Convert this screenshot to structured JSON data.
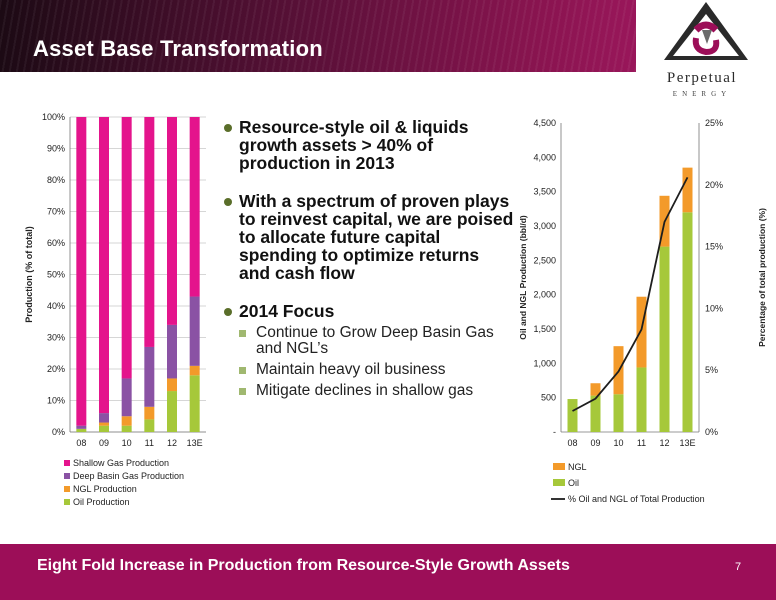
{
  "slide": {
    "title": "Asset Base Transformation",
    "logo": {
      "name": "Perpetual",
      "sub": "ENERGY"
    },
    "footer": "Eight Fold Increase in Production from Resource-Style Growth Assets",
    "page_number": "7"
  },
  "bullets": [
    {
      "text": "Resource-style oil & liquids growth assets > 40% of production in 2013",
      "subs": []
    },
    {
      "text": "With a spectrum of proven plays to reinvest capital, we are poised to allocate future capital spending to optimize returns and cash flow",
      "subs": []
    },
    {
      "text": "2014 Focus",
      "subs": [
        "Continue to Grow Deep Basin Gas and NGL’s",
        "Maintain heavy oil business",
        "Mitigate declines in shallow gas"
      ]
    }
  ],
  "chart_data": [
    {
      "type": "bar",
      "stacked": true,
      "categories": [
        "08",
        "09",
        "10",
        "11",
        "12",
        "13E"
      ],
      "ylabel": "Production (% of total)",
      "ylim": [
        0,
        100
      ],
      "y_ticks": [
        "0%",
        "10%",
        "20%",
        "30%",
        "40%",
        "50%",
        "60%",
        "70%",
        "80%",
        "90%",
        "100%"
      ],
      "grid": true,
      "legend_position": "bottom",
      "series": [
        {
          "name": "Oil Production",
          "color": "#a6c83a",
          "values": [
            1,
            2,
            2,
            4,
            13,
            18
          ]
        },
        {
          "name": "NGL Production",
          "color": "#f39a2a",
          "values": [
            0,
            1,
            3,
            4,
            4,
            3
          ]
        },
        {
          "name": "Deep Basin Gas Production",
          "color": "#8a52a4",
          "values": [
            1,
            3,
            12,
            19,
            17,
            22
          ]
        },
        {
          "name": "Shallow Gas Production",
          "color": "#e4148c",
          "values": [
            98,
            94,
            83,
            73,
            66,
            57
          ]
        }
      ],
      "legend_order": [
        "Shallow Gas Production",
        "Deep Basin Gas Production",
        "NGL Production",
        "Oil Production"
      ]
    },
    {
      "type": "bar",
      "stacked": true,
      "categories": [
        "08",
        "09",
        "10",
        "11",
        "12",
        "13E"
      ],
      "ylabel": "Oil and NGL Production (bbl/d)",
      "ylim": [
        0,
        4500
      ],
      "y_ticks": [
        "-",
        "500",
        "1,000",
        "1,500",
        "2,000",
        "2,500",
        "3,000",
        "3,500",
        "4,000",
        "4,500"
      ],
      "y2label": "Percentage of total production (%)",
      "y2lim": [
        0,
        25
      ],
      "y2_ticks": [
        "0%",
        "5%",
        "10%",
        "15%",
        "20%",
        "25%"
      ],
      "grid": false,
      "legend_position": "bottom",
      "series": [
        {
          "name": "Oil",
          "color": "#a6c83a",
          "values": [
            480,
            530,
            550,
            940,
            2700,
            3200
          ]
        },
        {
          "name": "NGL",
          "color": "#f39a2a",
          "values": [
            0,
            180,
            700,
            1030,
            740,
            650
          ]
        },
        {
          "name": "% Oil and NGL of Total Production",
          "type": "line",
          "axis": "y2",
          "color": "#1e1e1e",
          "values": [
            1.7,
            2.7,
            4.9,
            8.3,
            17.0,
            20.6
          ]
        }
      ],
      "legend_order": [
        "NGL",
        "Oil",
        "% Oil and NGL of Total Production"
      ]
    }
  ]
}
